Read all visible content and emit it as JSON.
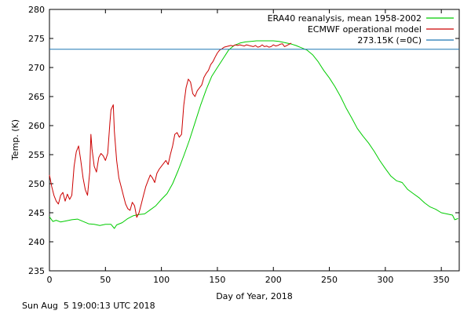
{
  "chart_data": {
    "type": "line",
    "xlabel": "Day of Year, 2018",
    "ylabel": "Temp. (K)",
    "xlim": [
      0,
      366
    ],
    "ylim": [
      235,
      280
    ],
    "xticks": [
      0,
      50,
      100,
      150,
      200,
      250,
      300,
      350
    ],
    "yticks": [
      235,
      240,
      245,
      250,
      255,
      260,
      265,
      270,
      275,
      280
    ],
    "grid": false,
    "legend_position": "top-right",
    "reference_line": {
      "name": "273.15K (=0C)",
      "y": 273.15,
      "color": "#1f77b4"
    },
    "series": [
      {
        "name": "ERA40 reanalysis, mean 1958-2002",
        "color": "#00cc00",
        "x": [
          0,
          3,
          6,
          10,
          15,
          20,
          25,
          30,
          35,
          40,
          45,
          50,
          55,
          58,
          60,
          65,
          70,
          75,
          80,
          85,
          90,
          95,
          100,
          105,
          110,
          115,
          120,
          125,
          130,
          135,
          140,
          145,
          150,
          155,
          160,
          165,
          170,
          175,
          180,
          185,
          190,
          195,
          200,
          205,
          210,
          215,
          220,
          225,
          230,
          235,
          240,
          245,
          250,
          255,
          260,
          265,
          270,
          275,
          280,
          285,
          290,
          295,
          300,
          305,
          310,
          315,
          320,
          325,
          330,
          335,
          340,
          345,
          350,
          355,
          360,
          362,
          365
        ],
        "y": [
          244.3,
          243.5,
          243.7,
          243.4,
          243.6,
          243.8,
          243.9,
          243.5,
          243.1,
          243.0,
          242.8,
          243.0,
          243.0,
          242.3,
          242.9,
          243.3,
          244.0,
          244.5,
          244.7,
          244.8,
          245.5,
          246.2,
          247.3,
          248.3,
          250.0,
          252.3,
          254.8,
          257.5,
          260.5,
          263.5,
          266.2,
          268.5,
          270.0,
          271.5,
          273.0,
          273.8,
          274.2,
          274.4,
          274.5,
          274.6,
          274.6,
          274.6,
          274.6,
          274.5,
          274.3,
          274.1,
          273.8,
          273.4,
          273.0,
          272.2,
          271.0,
          269.5,
          268.2,
          266.7,
          265.0,
          263.0,
          261.3,
          259.5,
          258.2,
          257.0,
          255.6,
          254.0,
          252.6,
          251.3,
          250.5,
          250.2,
          249.0,
          248.3,
          247.6,
          246.7,
          246.0,
          245.6,
          245.0,
          244.8,
          244.6,
          243.8,
          244.0
        ]
      },
      {
        "name": "ECMWF operational model",
        "color": "#cc0000",
        "x": [
          0,
          2,
          4,
          6,
          8,
          10,
          12,
          14,
          16,
          18,
          20,
          22,
          24,
          26,
          28,
          30,
          32,
          34,
          36,
          37,
          38,
          40,
          42,
          44,
          46,
          48,
          50,
          52,
          54,
          55,
          57,
          58,
          60,
          62,
          64,
          66,
          68,
          70,
          72,
          74,
          76,
          78,
          80,
          82,
          84,
          86,
          88,
          90,
          92,
          94,
          96,
          98,
          100,
          102,
          104,
          106,
          108,
          110,
          112,
          114,
          116,
          118,
          120,
          122,
          124,
          126,
          128,
          130,
          132,
          134,
          136,
          138,
          140,
          142,
          144,
          146,
          148,
          150,
          152,
          154,
          156,
          158,
          160,
          162,
          164,
          166,
          168,
          170,
          172,
          174,
          176,
          178,
          180,
          182,
          184,
          186,
          188,
          190,
          192,
          194,
          196,
          198,
          200,
          202,
          204,
          206,
          208,
          210,
          212,
          214,
          216
        ],
        "y": [
          251.5,
          249.5,
          248.0,
          247.0,
          246.5,
          248.0,
          248.5,
          247.0,
          248.2,
          247.3,
          248.0,
          253.0,
          255.5,
          256.5,
          254.0,
          251.0,
          249.0,
          248.0,
          252.0,
          258.5,
          256.0,
          253.0,
          252.0,
          254.5,
          255.2,
          254.8,
          254.0,
          255.2,
          260.5,
          262.7,
          263.6,
          259.0,
          254.0,
          251.0,
          249.5,
          248.0,
          246.5,
          245.7,
          245.4,
          246.8,
          246.2,
          244.2,
          245.0,
          246.5,
          248.0,
          249.5,
          250.5,
          251.5,
          251.0,
          250.2,
          251.8,
          252.5,
          253.0,
          253.5,
          254.0,
          253.3,
          255.0,
          256.5,
          258.5,
          258.8,
          258.0,
          258.5,
          263.5,
          266.5,
          268.0,
          267.5,
          265.5,
          265.0,
          266.0,
          266.5,
          267.0,
          268.3,
          269.0,
          269.5,
          270.5,
          271.0,
          271.8,
          272.5,
          273.0,
          273.2,
          273.5,
          273.6,
          273.7,
          273.8,
          273.7,
          273.9,
          273.8,
          273.9,
          273.8,
          273.7,
          273.9,
          273.8,
          273.7,
          273.6,
          273.8,
          273.5,
          273.6,
          273.9,
          273.6,
          273.7,
          273.5,
          273.6,
          273.9,
          273.7,
          273.8,
          274.0,
          274.1,
          273.6,
          273.8,
          274.0,
          274.2
        ]
      }
    ]
  },
  "footer": {
    "timestamp": "Sun Aug  5 19:00:13 UTC 2018"
  }
}
